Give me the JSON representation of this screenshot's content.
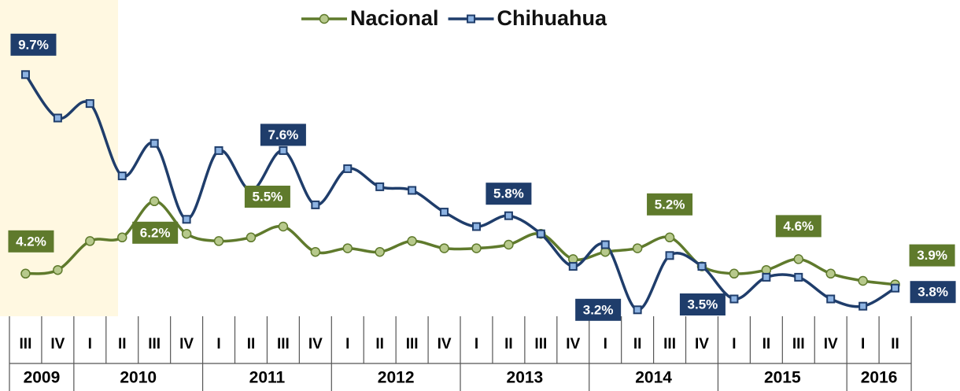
{
  "chart_data": {
    "type": "line",
    "categories": [
      "III",
      "IV",
      "I",
      "II",
      "III",
      "IV",
      "I",
      "II",
      "III",
      "IV",
      "I",
      "II",
      "III",
      "IV",
      "I",
      "II",
      "III",
      "IV",
      "I",
      "II",
      "III",
      "IV",
      "I",
      "II",
      "III",
      "IV",
      "I",
      "II"
    ],
    "category_groups": [
      {
        "label": "2009",
        "size": 2
      },
      {
        "label": "2010",
        "size": 4
      },
      {
        "label": "2011",
        "size": 4
      },
      {
        "label": "2012",
        "size": 4
      },
      {
        "label": "2013",
        "size": 4
      },
      {
        "label": "2014",
        "size": 4
      },
      {
        "label": "2015",
        "size": 4
      },
      {
        "label": "2016",
        "size": 2
      }
    ],
    "series": [
      {
        "name": "Nacional",
        "color": "#5f7a2c",
        "marker_fill": "#b7c98c",
        "marker": "circle",
        "values": [
          4.2,
          4.3,
          5.1,
          5.2,
          6.2,
          5.3,
          5.1,
          5.2,
          5.5,
          4.8,
          4.9,
          4.8,
          5.1,
          4.9,
          4.9,
          5.0,
          5.3,
          4.6,
          4.8,
          4.9,
          5.2,
          4.4,
          4.2,
          4.3,
          4.6,
          4.2,
          4.0,
          3.9
        ],
        "value_labels": [
          "4.2%",
          null,
          null,
          null,
          "6.2%",
          null,
          null,
          null,
          "5.5%",
          null,
          null,
          null,
          null,
          null,
          null,
          null,
          null,
          null,
          null,
          null,
          "5.2%",
          null,
          null,
          null,
          "4.6%",
          null,
          null,
          "3.9%"
        ]
      },
      {
        "name": "Chihuahua",
        "color": "#1f3d6b",
        "marker_fill": "#8db3e2",
        "marker": "square",
        "values": [
          9.7,
          8.5,
          8.9,
          6.9,
          7.8,
          5.7,
          7.6,
          6.5,
          7.6,
          6.1,
          7.1,
          6.6,
          6.5,
          5.9,
          5.5,
          5.8,
          5.3,
          4.4,
          5.0,
          3.2,
          4.7,
          4.4,
          3.5,
          4.1,
          4.1,
          3.5,
          3.3,
          3.8
        ],
        "value_labels": [
          "9.7%",
          null,
          null,
          null,
          null,
          null,
          null,
          null,
          "7.6%",
          null,
          null,
          null,
          null,
          null,
          null,
          "5.8%",
          null,
          null,
          null,
          "3.2%",
          null,
          null,
          "3.5%",
          null,
          null,
          null,
          null,
          "3.8%"
        ]
      }
    ],
    "ylim": [
      0,
      12
    ],
    "legend": "top"
  }
}
